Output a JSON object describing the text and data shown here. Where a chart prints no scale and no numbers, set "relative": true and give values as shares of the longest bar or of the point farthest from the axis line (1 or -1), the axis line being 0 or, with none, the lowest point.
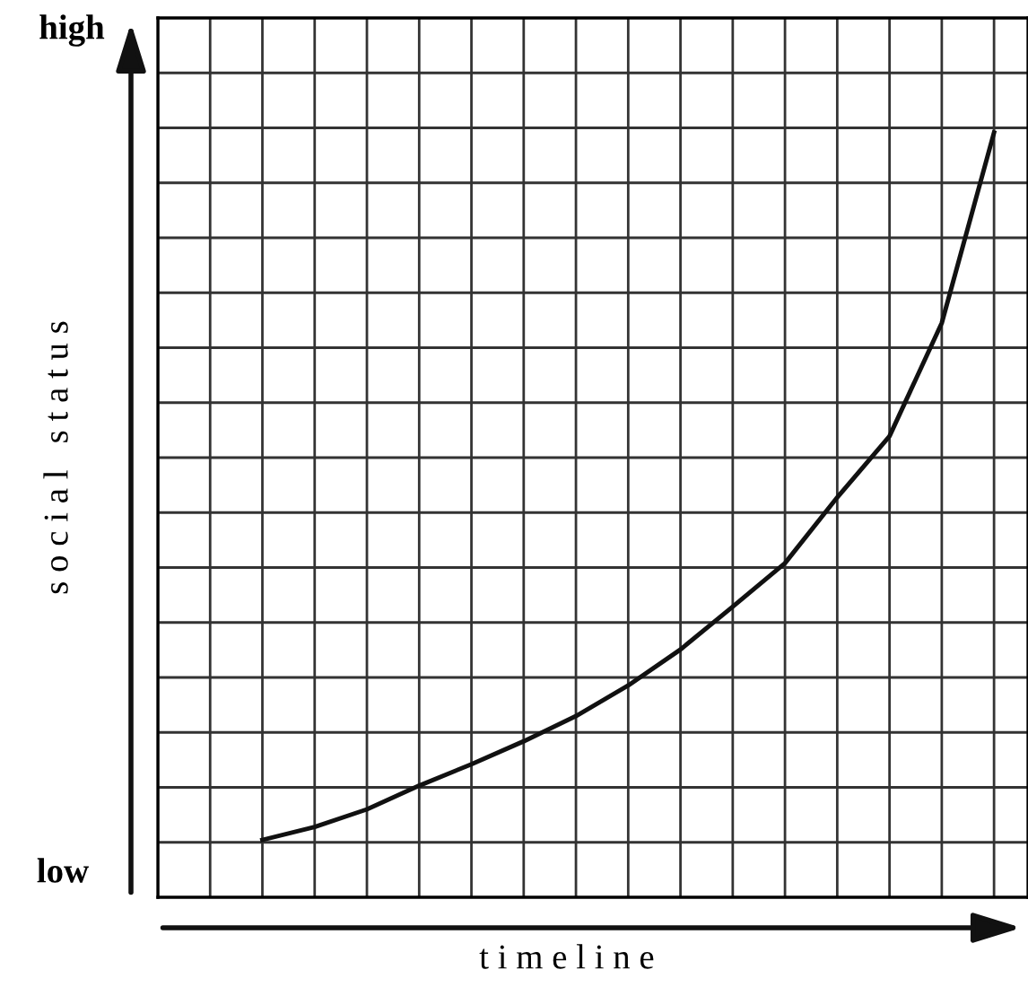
{
  "chart_data": {
    "type": "line",
    "relative": true,
    "xlabel": "t i m e l i n e",
    "ylabel": "s o c i a l   s t a t u s",
    "annotations": [
      "high",
      "low"
    ],
    "categories": [
      null,
      null,
      null,
      null,
      null,
      null,
      null,
      null,
      null,
      null,
      null,
      null,
      null,
      null,
      null
    ],
    "series": [
      {
        "color": "#111111",
        "values": [
          0.075,
          0.092,
          0.115,
          0.146,
          0.174,
          0.204,
          0.237,
          0.277,
          0.324,
          0.38,
          0.437,
          0.523,
          0.603,
          0.751,
          1
        ]
      }
    ],
    "grid": true,
    "marker": "none",
    "line_style": "solid"
  }
}
